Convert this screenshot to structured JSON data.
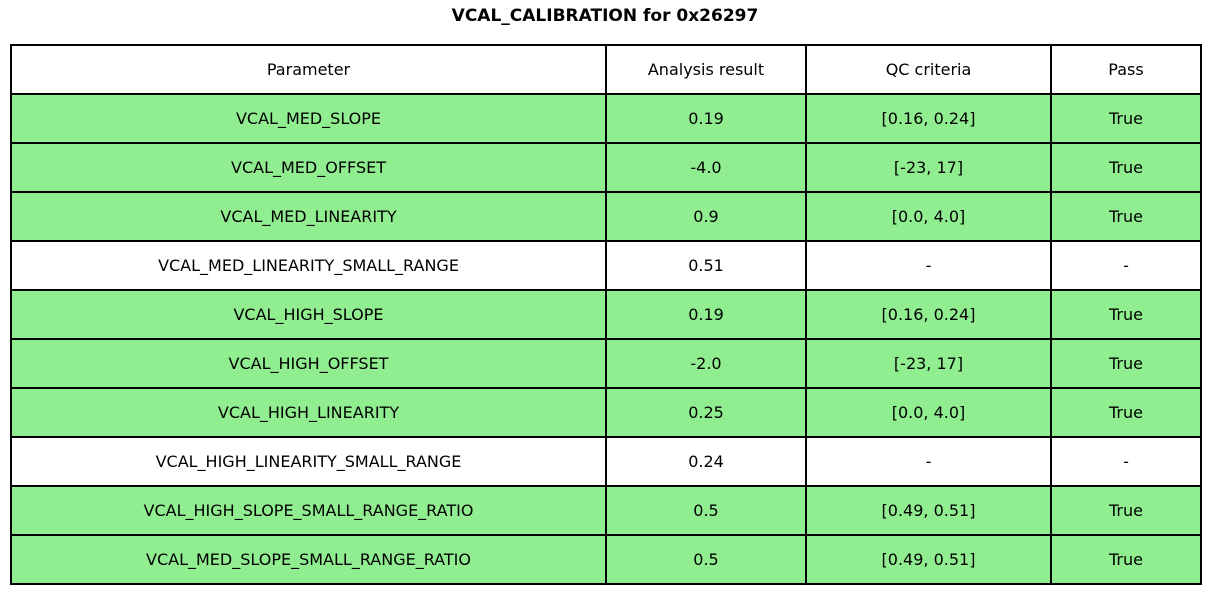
{
  "title": "VCAL_CALIBRATION for 0x26297",
  "colors": {
    "pass_row_bg": "#90EE90",
    "neutral_row_bg": "#FFFFFF",
    "border": "#000000",
    "text": "#000000"
  },
  "table": {
    "headers": [
      "Parameter",
      "Analysis result",
      "QC criteria",
      "Pass"
    ],
    "rows": [
      {
        "parameter": "VCAL_MED_SLOPE",
        "analysis_result": "0.19",
        "qc_criteria": "[0.16, 0.24]",
        "pass": "True",
        "highlight": true
      },
      {
        "parameter": "VCAL_MED_OFFSET",
        "analysis_result": "-4.0",
        "qc_criteria": "[-23, 17]",
        "pass": "True",
        "highlight": true
      },
      {
        "parameter": "VCAL_MED_LINEARITY",
        "analysis_result": "0.9",
        "qc_criteria": "[0.0, 4.0]",
        "pass": "True",
        "highlight": true
      },
      {
        "parameter": "VCAL_MED_LINEARITY_SMALL_RANGE",
        "analysis_result": "0.51",
        "qc_criteria": "-",
        "pass": "-",
        "highlight": false
      },
      {
        "parameter": "VCAL_HIGH_SLOPE",
        "analysis_result": "0.19",
        "qc_criteria": "[0.16, 0.24]",
        "pass": "True",
        "highlight": true
      },
      {
        "parameter": "VCAL_HIGH_OFFSET",
        "analysis_result": "-2.0",
        "qc_criteria": "[-23, 17]",
        "pass": "True",
        "highlight": true
      },
      {
        "parameter": "VCAL_HIGH_LINEARITY",
        "analysis_result": "0.25",
        "qc_criteria": "[0.0, 4.0]",
        "pass": "True",
        "highlight": true
      },
      {
        "parameter": "VCAL_HIGH_LINEARITY_SMALL_RANGE",
        "analysis_result": "0.24",
        "qc_criteria": "-",
        "pass": "-",
        "highlight": false
      },
      {
        "parameter": "VCAL_HIGH_SLOPE_SMALL_RANGE_RATIO",
        "analysis_result": "0.5",
        "qc_criteria": "[0.49, 0.51]",
        "pass": "True",
        "highlight": true
      },
      {
        "parameter": "VCAL_MED_SLOPE_SMALL_RANGE_RATIO",
        "analysis_result": "0.5",
        "qc_criteria": "[0.49, 0.51]",
        "pass": "True",
        "highlight": true
      }
    ]
  },
  "chart_data": {
    "type": "table",
    "title": "VCAL_CALIBRATION for 0x26297",
    "columns": [
      "Parameter",
      "Analysis result",
      "QC criteria",
      "Pass"
    ],
    "rows": [
      [
        "VCAL_MED_SLOPE",
        0.19,
        "[0.16, 0.24]",
        "True"
      ],
      [
        "VCAL_MED_OFFSET",
        -4.0,
        "[-23, 17]",
        "True"
      ],
      [
        "VCAL_MED_LINEARITY",
        0.9,
        "[0.0, 4.0]",
        "True"
      ],
      [
        "VCAL_MED_LINEARITY_SMALL_RANGE",
        0.51,
        "-",
        "-"
      ],
      [
        "VCAL_HIGH_SLOPE",
        0.19,
        "[0.16, 0.24]",
        "True"
      ],
      [
        "VCAL_HIGH_OFFSET",
        -2.0,
        "[-23, 17]",
        "True"
      ],
      [
        "VCAL_HIGH_LINEARITY",
        0.25,
        "[0.0, 4.0]",
        "True"
      ],
      [
        "VCAL_HIGH_LINEARITY_SMALL_RANGE",
        0.24,
        "-",
        "-"
      ],
      [
        "VCAL_HIGH_SLOPE_SMALL_RANGE_RATIO",
        0.5,
        "[0.49, 0.51]",
        "True"
      ],
      [
        "VCAL_MED_SLOPE_SMALL_RANGE_RATIO",
        0.5,
        "[0.49, 0.51]",
        "True"
      ]
    ],
    "highlighted_rows": [
      0,
      1,
      2,
      4,
      5,
      6,
      8,
      9
    ],
    "highlight_color": "#90EE90",
    "legend_position": "none",
    "grid": true
  }
}
